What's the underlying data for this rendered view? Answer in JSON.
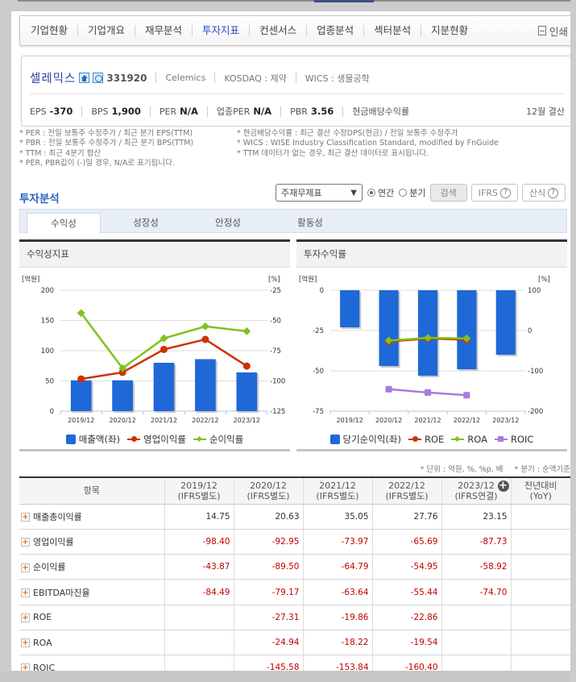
{
  "nav": {
    "items": [
      "기업현황",
      "기업개요",
      "재무분석",
      "투자지표",
      "컨센서스",
      "업종분석",
      "섹터분석",
      "지분현황"
    ],
    "active_index": 3,
    "print_label": "인쇄"
  },
  "company": {
    "name": "셀레믹스",
    "code": "331920",
    "english_name": "Celemics",
    "market": "KOSDAQ : 제약",
    "wics": "WICS : 생물공학",
    "home_icon": "home-icon",
    "phone_icon": "phone-icon",
    "metrics": [
      {
        "label": "EPS",
        "value": "-370"
      },
      {
        "label": "BPS",
        "value": "1,900"
      },
      {
        "label": "PER",
        "value": "N/A"
      },
      {
        "label": "업종PER",
        "value": "N/A"
      },
      {
        "label": "PBR",
        "value": "3.56"
      },
      {
        "label": "현금배당수익률",
        "value": ""
      }
    ],
    "closing_month": "12월 결산"
  },
  "notes": {
    "left": [
      "* PER : 전일 보통주 수정주가 / 최근 분기 EPS(TTM)",
      "* PBR : 전일 보통주 수정주가 / 최근 분기 BPS(TTM)",
      "* TTM : 최근 4분기 합산",
      "* PER, PBR값이 (-)일 경우, N/A로 표기됩니다."
    ],
    "right": [
      "* 현금배당수익률 : 최근 결산 수정DPS(현금) / 전일 보통주 수정주가",
      "* WICS : WISE Industry Classification Standard, modified by FnGuide",
      "* TTM 데이터가 없는 경우, 최근 결산 데이터로 표시됩니다."
    ]
  },
  "analysis": {
    "title": "투자분석",
    "select_value": "주재무제표",
    "radio_annual": "연간",
    "radio_quarter": "분기",
    "search_button": "검색",
    "ifrs_button": "IFRS",
    "formula_button": "산식",
    "help_glyph": "?",
    "tabs": [
      "수익성",
      "성장성",
      "안정성",
      "활동성"
    ],
    "active_tab": 0
  },
  "chart_data": [
    {
      "type": "bar",
      "title": "수익성지표",
      "categories": [
        "2019/12",
        "2020/12",
        "2021/12",
        "2022/12",
        "2023/12"
      ],
      "left_axis_label": "[억원]",
      "right_axis_label": "[%]",
      "left_ticks": [
        "200",
        "150",
        "100",
        "50",
        "0"
      ],
      "right_ticks": [
        "-25",
        "-50",
        "-75",
        "-100",
        "-125"
      ],
      "ylim_left": [
        0,
        200
      ],
      "ylim_right": [
        -125,
        -25
      ],
      "series": [
        {
          "name": "매출액(좌)",
          "kind": "bar",
          "axis": "left",
          "color": "#1f68d8",
          "values": [
            51,
            51,
            80,
            86,
            64
          ]
        },
        {
          "name": "영업이익률",
          "kind": "line",
          "axis": "right",
          "color": "#cc3300",
          "values": [
            -98.4,
            -92.95,
            -73.97,
            -65.69,
            -87.73
          ]
        },
        {
          "name": "순이익률",
          "kind": "line",
          "axis": "right",
          "color": "#7fc31c",
          "values": [
            -43.87,
            -89.5,
            -64.79,
            -54.95,
            -58.92
          ]
        }
      ],
      "legend_position": "bottom",
      "grid": true
    },
    {
      "type": "bar",
      "title": "투자수익률",
      "categories": [
        "2019/12",
        "2020/12",
        "2021/12",
        "2022/12",
        "2023/12"
      ],
      "left_axis_label": "[억원]",
      "right_axis_label": "[%]",
      "left_ticks": [
        "0",
        "-25",
        "-50",
        "-75"
      ],
      "right_ticks": [
        "100",
        "0",
        "-100",
        "-200"
      ],
      "ylim_left": [
        -75,
        0
      ],
      "ylim_right": [
        -200,
        100
      ],
      "series": [
        {
          "name": "당기순이익(좌)",
          "kind": "bar",
          "axis": "left",
          "color": "#1f68d8",
          "values": [
            -23,
            -47,
            -53,
            -49,
            -40
          ]
        },
        {
          "name": "ROE",
          "kind": "line",
          "axis": "right",
          "color": "#cc3300",
          "values": [
            null,
            -27.31,
            -19.86,
            -22.86,
            null
          ]
        },
        {
          "name": "ROA",
          "kind": "line",
          "axis": "right",
          "color": "#7fc31c",
          "values": [
            null,
            -24.94,
            -18.22,
            -19.54,
            null
          ]
        },
        {
          "name": "ROIC",
          "kind": "line",
          "axis": "right",
          "color": "#a77ddb",
          "values": [
            null,
            -145.58,
            -153.84,
            -160.4,
            null
          ]
        }
      ],
      "legend_position": "bottom",
      "grid": true
    }
  ],
  "table": {
    "unit_note": "* 단위 : 억원, %, %p, 배",
    "quarter_note": "* 분기 : 순액기준",
    "headers": [
      {
        "line1": "항목",
        "line2": ""
      },
      {
        "line1": "2019/12",
        "line2": "(IFRS별도)"
      },
      {
        "line1": "2020/12",
        "line2": "(IFRS별도)"
      },
      {
        "line1": "2021/12",
        "line2": "(IFRS별도)"
      },
      {
        "line1": "2022/12",
        "line2": "(IFRS별도)"
      },
      {
        "line1": "2023/12",
        "line2": "(IFRS연결)"
      },
      {
        "line1": "전년대비",
        "line2": "(YoY)"
      }
    ],
    "rows": [
      {
        "label": "매출총이익률",
        "values": [
          "14.75",
          "20.63",
          "35.05",
          "27.76",
          "23.15",
          ""
        ]
      },
      {
        "label": "영업이익률",
        "values": [
          "-98.40",
          "-92.95",
          "-73.97",
          "-65.69",
          "-87.73",
          ""
        ]
      },
      {
        "label": "순이익률",
        "values": [
          "-43.87",
          "-89.50",
          "-64.79",
          "-54.95",
          "-58.92",
          ""
        ]
      },
      {
        "label": "EBITDA마진율",
        "values": [
          "-84.49",
          "-79.17",
          "-63.64",
          "-55.44",
          "-74.70",
          ""
        ]
      },
      {
        "label": "ROE",
        "values": [
          "",
          "-27.31",
          "-19.86",
          "-22.86",
          "",
          ""
        ]
      },
      {
        "label": "ROA",
        "values": [
          "",
          "-24.94",
          "-18.22",
          "-19.54",
          "",
          ""
        ]
      },
      {
        "label": "ROIC",
        "values": [
          "",
          "-145.58",
          "-153.84",
          "-160.40",
          "",
          ""
        ]
      }
    ]
  }
}
